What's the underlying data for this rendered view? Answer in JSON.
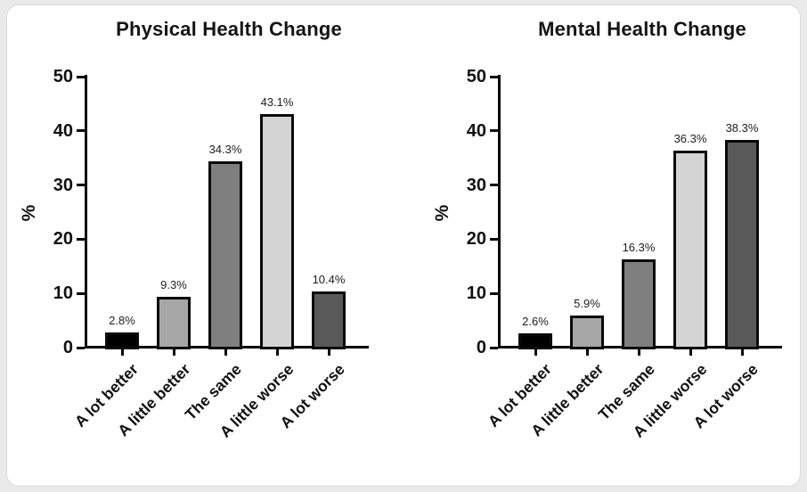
{
  "page": {
    "background_color": "#eaeaea",
    "card_background": "#ffffff",
    "card_border_color": "#d9d9d9"
  },
  "chart_data": [
    {
      "type": "bar",
      "title": "Physical Health Change",
      "ylabel": "%",
      "xlabel": "",
      "categories": [
        "A lot better",
        "A little better",
        "The same",
        "A little worse",
        "A lot worse"
      ],
      "values": [
        2.8,
        9.3,
        34.3,
        43.1,
        10.4
      ],
      "value_labels": [
        "2.8%",
        "9.3%",
        "34.3%",
        "43.1%",
        "10.4%"
      ],
      "ylim": [
        0,
        50
      ],
      "yticks": [
        0,
        10,
        20,
        30,
        40,
        50
      ],
      "bar_colors": [
        "#000000",
        "#a6a6a6",
        "#7f7f7f",
        "#d4d4d4",
        "#595959"
      ],
      "bar_outline_color": "#0a0a0a",
      "grid": false,
      "legend": "none"
    },
    {
      "type": "bar",
      "title": "Mental Health Change",
      "ylabel": "%",
      "xlabel": "",
      "categories": [
        "A lot better",
        "A little better",
        "The same",
        "A little worse",
        "A lot worse"
      ],
      "values": [
        2.6,
        5.9,
        16.3,
        36.3,
        38.3
      ],
      "value_labels": [
        "2.6%",
        "5.9%",
        "16.3%",
        "36.3%",
        "38.3%"
      ],
      "ylim": [
        0,
        50
      ],
      "yticks": [
        0,
        10,
        20,
        30,
        40,
        50
      ],
      "bar_colors": [
        "#000000",
        "#a6a6a6",
        "#7f7f7f",
        "#d4d4d4",
        "#595959"
      ],
      "bar_outline_color": "#0a0a0a",
      "grid": false,
      "legend": "none"
    }
  ]
}
